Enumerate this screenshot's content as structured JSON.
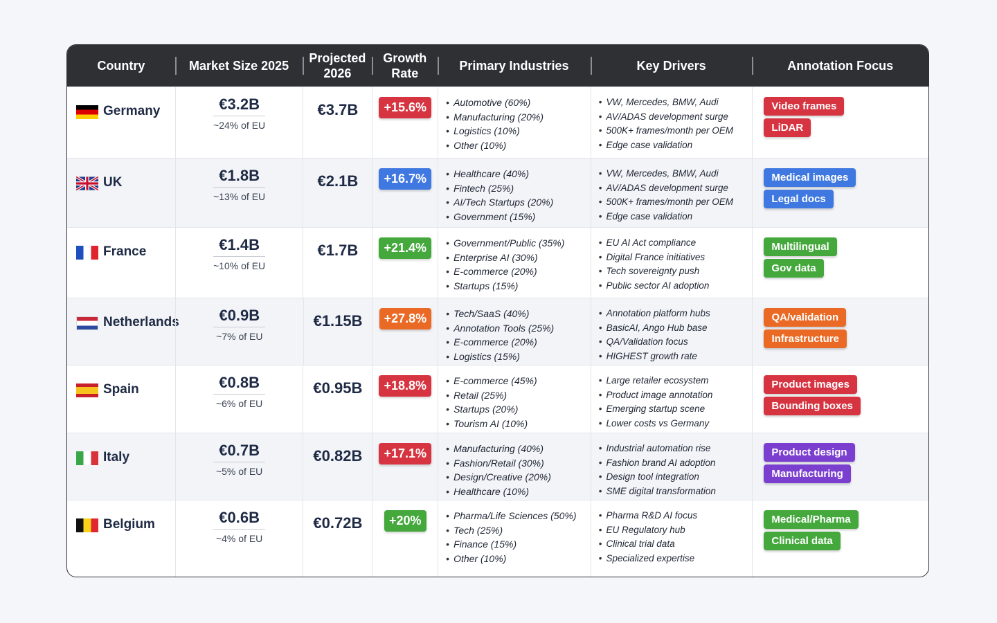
{
  "headers": [
    "Country",
    "Market Size 2025",
    "Projected 2026",
    "Growth Rate",
    "Primary Industries",
    "Key Drivers",
    "Annotation Focus"
  ],
  "rows": [
    {
      "country": "Germany",
      "flag": [
        "#000000",
        "#dd0000",
        "#ffce00"
      ],
      "flag_orientation": "horizontal",
      "market": "€3.2B",
      "share": "~24% of EU",
      "projected": "€3.7B",
      "growth": "+15.6%",
      "growth_color": "#d63440",
      "industries": [
        "Automotive (60%)",
        "Manufacturing (20%)",
        "Logistics (10%)",
        "Other (10%)"
      ],
      "drivers": [
        "VW, Mercedes, BMW, Audi",
        "AV/ADAS development surge",
        "500K+ frames/month per OEM",
        "Edge case validation"
      ],
      "tags": [
        "Video frames",
        "LiDAR"
      ],
      "tag_color": "#d63440"
    },
    {
      "country": "UK",
      "flag": [
        "uk"
      ],
      "flag_orientation": "uk",
      "market": "€1.8B",
      "share": "~13% of EU",
      "projected": "€2.1B",
      "growth": "+16.7%",
      "growth_color": "#3f78e0",
      "industries": [
        "Healthcare (40%)",
        "Fintech (25%)",
        "AI/Tech Startups (20%)",
        "Government (15%)"
      ],
      "drivers": [
        "VW, Mercedes, BMW, Audi",
        "AV/ADAS development surge",
        "500K+ frames/month per OEM",
        "Edge case validation"
      ],
      "tags": [
        "Medical images",
        "Legal docs"
      ],
      "tag_color": "#3f78e0"
    },
    {
      "country": "France",
      "flag": [
        "#1f4fbf",
        "#ffffff",
        "#e0242e"
      ],
      "flag_orientation": "vertical",
      "market": "€1.4B",
      "share": "~10% of EU",
      "projected": "€1.7B",
      "growth": "+21.4%",
      "growth_color": "#44a83c",
      "industries": [
        "Government/Public (35%)",
        "Enterprise AI (30%)",
        "E-commerce (20%)",
        "Startups (15%)"
      ],
      "drivers": [
        "EU AI Act compliance",
        "Digital France initiatives",
        "Tech sovereignty push",
        "Public sector AI adoption"
      ],
      "tags": [
        "Multilingual",
        "Gov data"
      ],
      "tag_color": "#44a83c"
    },
    {
      "country": "Netherlands",
      "flag": [
        "#c8283a",
        "#ffffff",
        "#2b4aa0"
      ],
      "flag_orientation": "horizontal",
      "market": "€0.9B",
      "share": "~7% of EU",
      "projected": "€1.15B",
      "growth": "+27.8%",
      "growth_color": "#ea6a25",
      "industries": [
        "Tech/SaaS (40%)",
        "Annotation Tools (25%)",
        "E-commerce (20%)",
        "Logistics (15%)"
      ],
      "drivers": [
        "Annotation platform hubs",
        "BasicAI, Ango Hub base",
        "QA/Validation focus",
        "HIGHEST growth rate"
      ],
      "tags": [
        "QA/validation",
        "Infrastructure"
      ],
      "tag_color": "#ea6a25"
    },
    {
      "country": "Spain",
      "flag": [
        "#c8202a",
        "#f6c21b",
        "#c8202a"
      ],
      "flag_orientation": "spain",
      "market": "€0.8B",
      "share": "~6% of EU",
      "projected": "€0.95B",
      "growth": "+18.8%",
      "growth_color": "#d63440",
      "industries": [
        "E-commerce (45%)",
        "Retail (25%)",
        "Startups (20%)",
        "Tourism AI (10%)"
      ],
      "drivers": [
        "Large retailer ecosystem",
        "Product image annotation",
        "Emerging startup scene",
        "Lower costs vs Germany"
      ],
      "tags": [
        "Product images",
        "Bounding boxes"
      ],
      "tag_color": "#d63440"
    },
    {
      "country": "Italy",
      "flag": [
        "#3aa64a",
        "#ffffff",
        "#d8323b"
      ],
      "flag_orientation": "vertical",
      "market": "€0.7B",
      "share": "~5% of EU",
      "projected": "€0.82B",
      "growth": "+17.1%",
      "growth_color": "#d63440",
      "industries": [
        "Manufacturing (40%)",
        "Fashion/Retail (30%)",
        "Design/Creative (20%)",
        "Healthcare (10%)"
      ],
      "drivers": [
        "Industrial automation rise",
        "Fashion brand AI adoption",
        "Design tool integration",
        "SME digital transformation"
      ],
      "tags": [
        "Product design",
        "Manufacturing"
      ],
      "tag_color": "#7b3fd0"
    },
    {
      "country": "Belgium",
      "flag": [
        "#111111",
        "#f7d21a",
        "#e0282f"
      ],
      "flag_orientation": "vertical",
      "market": "€0.6B",
      "share": "~4% of EU",
      "projected": "€0.72B",
      "growth": "+20%",
      "growth_color": "#44a83c",
      "industries": [
        "Pharma/Life Sciences (50%)",
        "Tech (25%)",
        "Finance (15%)",
        "Other (10%)"
      ],
      "drivers": [
        "Pharma R&D AI focus",
        "EU Regulatory hub",
        "Clinical trial data",
        "Specialized expertise"
      ],
      "tags": [
        "Medical/Pharma",
        "Clinical data"
      ],
      "tag_color": "#44a83c"
    }
  ]
}
